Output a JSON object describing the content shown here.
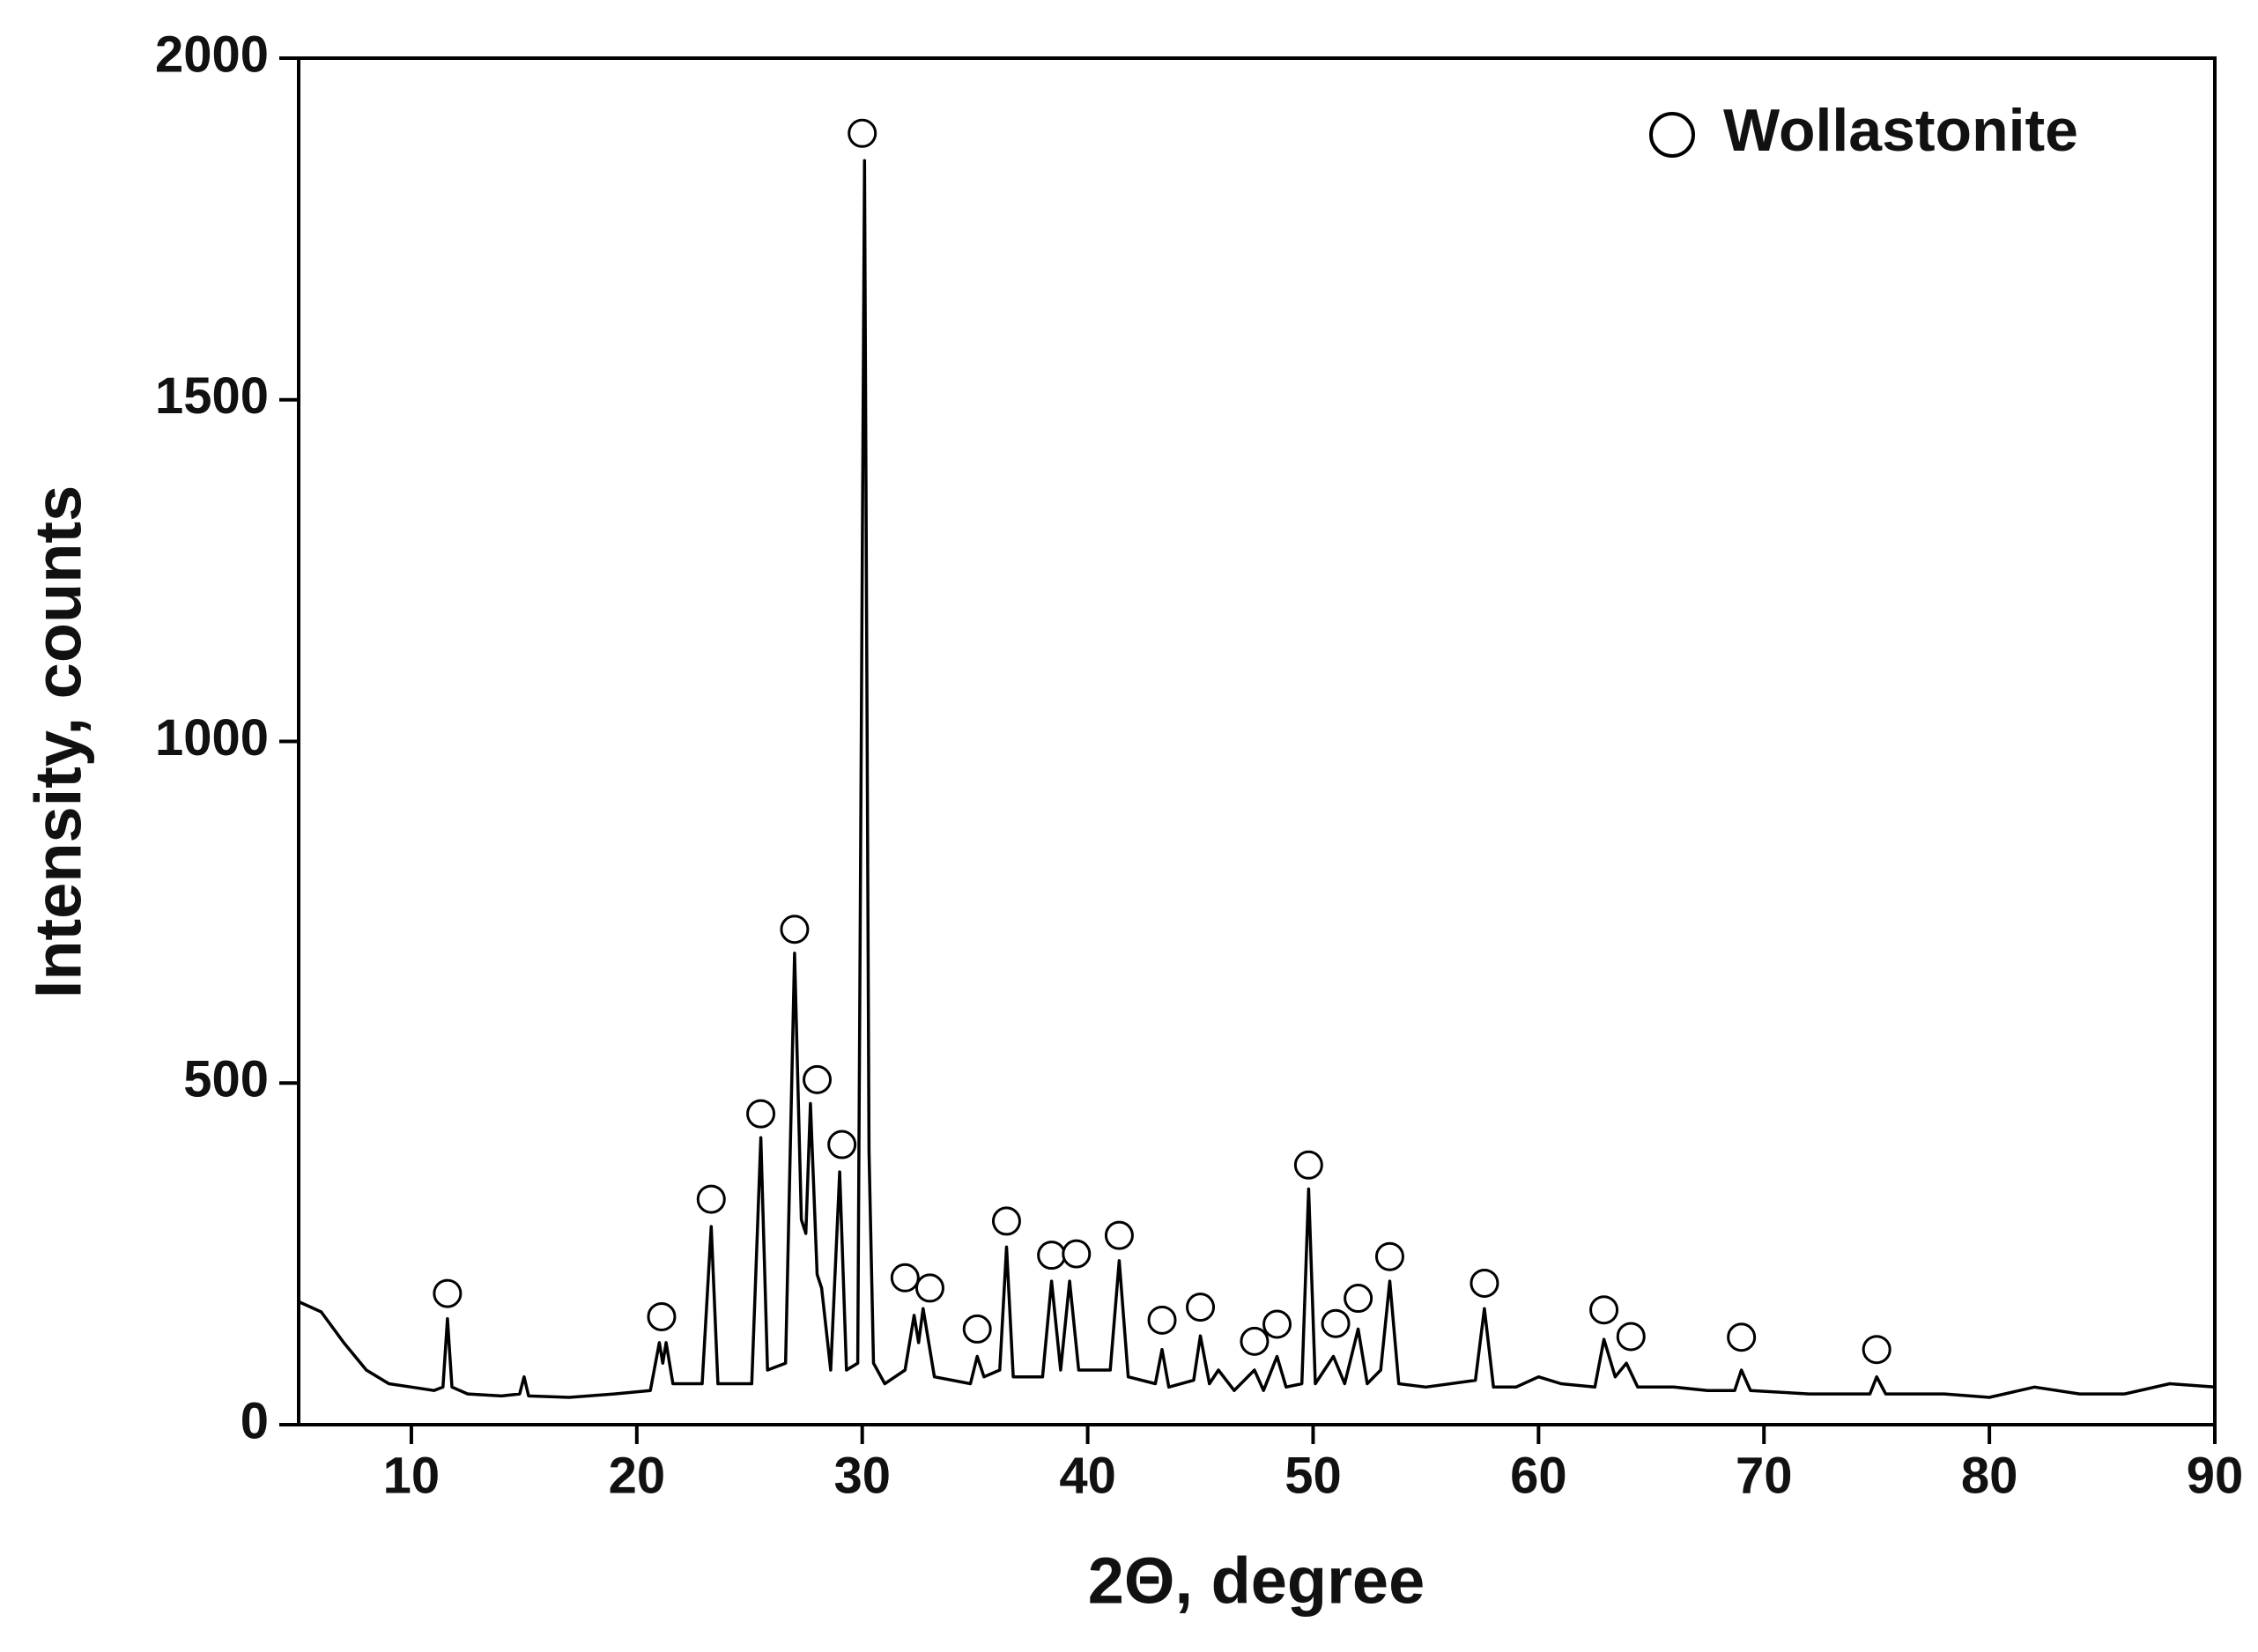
{
  "chart_data": {
    "type": "line",
    "x_label": "2Θ, degree",
    "y_label": "Intensity, counts",
    "xlim": [
      5,
      90
    ],
    "xticks": [
      10,
      20,
      30,
      40,
      50,
      60,
      70,
      80,
      90
    ],
    "ylim": [
      0,
      2000
    ],
    "yticks": [
      0,
      500,
      1000,
      1500,
      2000
    ],
    "grid": false,
    "legend": "top-right",
    "line": {
      "color": "#000000",
      "x": [
        5,
        6,
        7,
        8,
        9,
        10,
        11,
        11.4,
        11.6,
        11.8,
        12.5,
        14,
        14.8,
        15,
        15.2,
        17,
        19,
        20.6,
        21,
        21.15,
        21.3,
        21.6,
        22.9,
        23.3,
        23.6,
        25.1,
        25.5,
        25.8,
        26.6,
        27,
        27.3,
        27.5,
        27.7,
        28,
        28.2,
        28.6,
        29,
        29.3,
        29.8,
        30.1,
        30.3,
        30.5,
        31,
        31.9,
        32.3,
        32.5,
        32.7,
        33.2,
        34.8,
        35.1,
        35.4,
        36.1,
        36.4,
        36.7,
        38,
        38.4,
        38.8,
        39.2,
        39.6,
        41,
        41.4,
        41.8,
        43,
        43.3,
        43.6,
        44.7,
        45,
        45.4,
        45.8,
        46.5,
        47.4,
        47.8,
        48.4,
        48.8,
        49.5,
        49.8,
        50.1,
        50.9,
        51.4,
        52,
        52.4,
        53,
        53.4,
        53.8,
        55,
        57.2,
        57.6,
        58,
        59,
        60,
        61,
        62.5,
        62.9,
        63.4,
        63.9,
        64.4,
        66,
        67.5,
        68.7,
        69,
        69.4,
        72,
        74.7,
        75,
        75.4,
        78,
        80,
        82,
        84,
        86,
        88,
        90
      ],
      "values": [
        180,
        165,
        120,
        80,
        60,
        55,
        50,
        55,
        155,
        55,
        45,
        42,
        45,
        70,
        42,
        40,
        45,
        50,
        120,
        90,
        120,
        60,
        60,
        290,
        60,
        60,
        420,
        80,
        90,
        690,
        300,
        280,
        470,
        220,
        200,
        80,
        370,
        80,
        90,
        1850,
        400,
        90,
        60,
        80,
        160,
        120,
        170,
        70,
        60,
        100,
        70,
        80,
        260,
        70,
        70,
        210,
        80,
        210,
        80,
        80,
        240,
        70,
        60,
        110,
        55,
        65,
        130,
        60,
        80,
        50,
        80,
        50,
        100,
        55,
        60,
        345,
        60,
        100,
        60,
        140,
        60,
        80,
        210,
        60,
        55,
        65,
        170,
        55,
        55,
        70,
        60,
        55,
        125,
        70,
        90,
        55,
        55,
        50,
        50,
        80,
        50,
        45,
        45,
        70,
        45,
        45,
        40,
        55,
        45,
        45,
        60,
        55
      ]
    },
    "series": [
      {
        "name": "Wollastonite",
        "marker": "open-circle",
        "color": "#000000",
        "x": [
          11.6,
          21.1,
          23.3,
          25.5,
          27,
          28,
          29.1,
          30,
          31.9,
          33,
          35.1,
          36.4,
          38.4,
          39.5,
          41.4,
          43.3,
          45,
          47.4,
          48.4,
          49.8,
          51,
          52,
          53.4,
          57.6,
          62.9,
          64.1,
          69,
          75
        ],
        "values": [
          192,
          158,
          330,
          455,
          725,
          505,
          410,
          1890,
          215,
          200,
          140,
          298,
          248,
          250,
          277,
          153,
          172,
          122,
          147,
          380,
          148,
          185,
          246,
          207,
          168,
          129,
          128,
          110
        ]
      }
    ]
  }
}
